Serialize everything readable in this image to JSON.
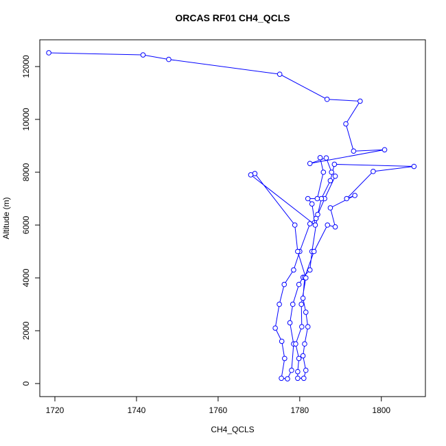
{
  "chart_data": {
    "type": "line",
    "title": "ORCAS RF01 CH4_QCLS",
    "x_label": "CH4_QCLS",
    "y_label": "Altitude (m)",
    "color": "#0000ff",
    "markers": true,
    "xlim": [
      1716.3,
      1810.8
    ],
    "ylim": [
      -494,
      13013
    ],
    "xticks": [
      1720,
      1740,
      1760,
      1780,
      1800
    ],
    "yticks": [
      0,
      2000,
      4000,
      6000,
      8000,
      10000,
      12000
    ],
    "x": [
      1718.5,
      1741.6,
      1747.9,
      1775.1,
      1786.7,
      1794.8,
      1791.3,
      1793.2,
      1800.8,
      1782.5,
      1786.5,
      1787.8,
      1788.7,
      1786.1,
      1784.0,
      1782.5,
      1780.0,
      1778.5,
      1776.2,
      1775.0,
      1774.0,
      1775.6,
      1776.3,
      1775.5,
      1777.0,
      1778.0,
      1778.5,
      1777.6,
      1778.3,
      1779.8,
      1780.8,
      1782.5,
      1783.0,
      1784.4,
      1785.3,
      1787.5,
      1788.5,
      1808.0,
      1798.0,
      1791.5,
      1793.5,
      1787.5,
      1788.7,
      1786.8,
      1783.5,
      1781.2,
      1780.8,
      1781.5,
      1782.0,
      1781.2,
      1780.8,
      1781.5,
      1781.0,
      1779.5,
      1779.5,
      1779.8,
      1779.0,
      1780.5,
      1780.4,
      1781.5,
      1779.5,
      1778.8,
      1769.0,
      1768.0,
      1783.8,
      1783.0,
      1782.0,
      1784.3,
      1785.8,
      1785.0
    ],
    "values": [
      12520,
      12440,
      12270,
      11710,
      10760,
      10690,
      9830,
      8800,
      8850,
      8330,
      8540,
      8000,
      7850,
      7000,
      6250,
      6050,
      5000,
      4300,
      3750,
      3000,
      2100,
      1600,
      950,
      200,
      180,
      500,
      1500,
      2300,
      3000,
      3750,
      4020,
      4300,
      5000,
      6400,
      7000,
      7680,
      8300,
      8220,
      8030,
      7000,
      7120,
      6650,
      5930,
      6000,
      5000,
      4020,
      3230,
      2700,
      2150,
      1500,
      1050,
      500,
      200,
      200,
      450,
      950,
      1500,
      2150,
      3000,
      4000,
      5000,
      6000,
      7950,
      7900,
      6000,
      6800,
      7000,
      7000,
      8000,
      8550
    ]
  }
}
